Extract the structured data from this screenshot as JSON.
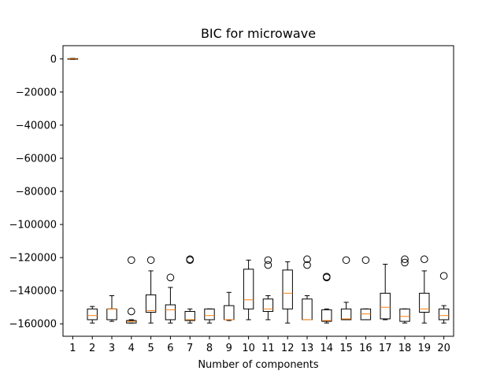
{
  "chart_data": {
    "type": "box",
    "title": "BIC for microwave",
    "xlabel": "Number of components",
    "ylabel": "",
    "categories": [
      "1",
      "2",
      "3",
      "4",
      "5",
      "6",
      "7",
      "8",
      "9",
      "10",
      "11",
      "12",
      "13",
      "14",
      "15",
      "16",
      "17",
      "18",
      "19",
      "20"
    ],
    "ylim": [
      -167500,
      8000
    ],
    "yticks": [
      0,
      -20000,
      -40000,
      -60000,
      -80000,
      -100000,
      -120000,
      -140000,
      -160000
    ],
    "ytick_labels": [
      "0",
      "−20000",
      "−40000",
      "−60000",
      "−80000",
      "−100000",
      "−120000",
      "−140000",
      "−160000"
    ],
    "grid": false,
    "box_color": "#000000",
    "median_color": "#ff7f0e",
    "boxes": [
      {
        "whislo": -300,
        "q1": -200,
        "med": 0,
        "q3": 200,
        "whishi": 300,
        "fliers": []
      },
      {
        "whislo": -159500,
        "q1": -157500,
        "med": -155000,
        "q3": -151000,
        "whishi": -149500,
        "fliers": []
      },
      {
        "whislo": -158500,
        "q1": -157500,
        "med": -151000,
        "q3": -151000,
        "whishi": -143000,
        "fliers": []
      },
      {
        "whislo": -159500,
        "q1": -159500,
        "med": -158500,
        "q3": -158000,
        "whishi": -157500,
        "fliers": [
          -121500,
          -152500
        ]
      },
      {
        "whislo": -159500,
        "q1": -153000,
        "med": -152000,
        "q3": -142500,
        "whishi": -128000,
        "fliers": [
          -121500
        ]
      },
      {
        "whislo": -159500,
        "q1": -157500,
        "med": -151500,
        "q3": -148500,
        "whishi": -138000,
        "fliers": [
          -132000
        ]
      },
      {
        "whislo": -159500,
        "q1": -158000,
        "med": -157500,
        "q3": -152500,
        "whishi": -151000,
        "fliers": [
          -121000,
          -121500
        ]
      },
      {
        "whislo": -159500,
        "q1": -157500,
        "med": -155000,
        "q3": -151000,
        "whishi": -151000,
        "fliers": []
      },
      {
        "whislo": -158000,
        "q1": -157500,
        "med": -157500,
        "q3": -149000,
        "whishi": -141000,
        "fliers": []
      },
      {
        "whislo": -157500,
        "q1": -151000,
        "med": -145500,
        "q3": -127000,
        "whishi": -121500,
        "fliers": []
      },
      {
        "whislo": -157500,
        "q1": -152500,
        "med": -151000,
        "q3": -145000,
        "whishi": -143000,
        "fliers": [
          -121500,
          -124500
        ]
      },
      {
        "whislo": -159500,
        "q1": -151000,
        "med": -141500,
        "q3": -127500,
        "whishi": -122500,
        "fliers": []
      },
      {
        "whislo": -157500,
        "q1": -157500,
        "med": -157500,
        "q3": -145000,
        "whishi": -143000,
        "fliers": [
          -121000,
          -124500
        ]
      },
      {
        "whislo": -159500,
        "q1": -158500,
        "med": -158000,
        "q3": -151500,
        "whishi": -151000,
        "fliers": [
          -131500,
          -132000
        ]
      },
      {
        "whislo": -157500,
        "q1": -157500,
        "med": -157000,
        "q3": -151000,
        "whishi": -147000,
        "fliers": [
          -121500
        ]
      },
      {
        "whislo": -157500,
        "q1": -157500,
        "med": -154000,
        "q3": -151000,
        "whishi": -151000,
        "fliers": [
          -121500
        ]
      },
      {
        "whislo": -157500,
        "q1": -157000,
        "med": -150000,
        "q3": -141500,
        "whishi": -124000,
        "fliers": []
      },
      {
        "whislo": -159500,
        "q1": -158500,
        "med": -155500,
        "q3": -151000,
        "whishi": -151000,
        "fliers": [
          -121000,
          -123000
        ]
      },
      {
        "whislo": -159500,
        "q1": -153000,
        "med": -151000,
        "q3": -141500,
        "whishi": -128000,
        "fliers": [
          -121000
        ]
      },
      {
        "whislo": -159500,
        "q1": -157500,
        "med": -155000,
        "q3": -151000,
        "whishi": -149000,
        "fliers": [
          -131000
        ]
      }
    ]
  }
}
